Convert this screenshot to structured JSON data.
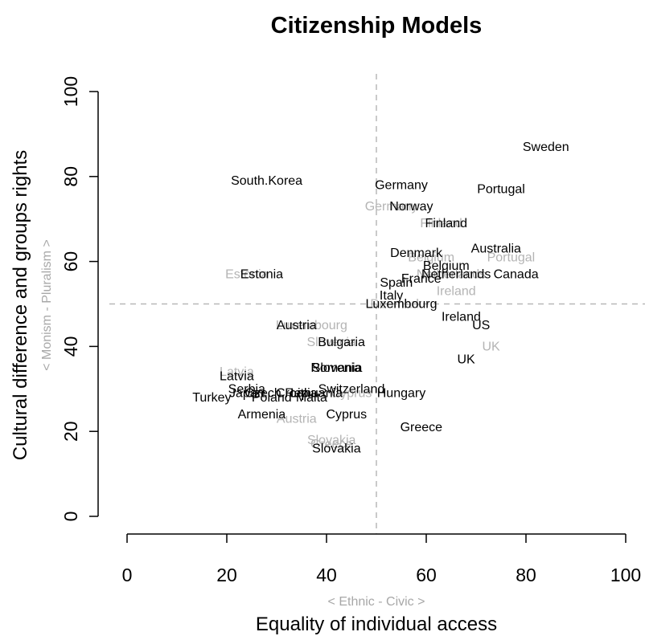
{
  "chart_data": {
    "type": "scatter",
    "title": "Citizenship Models",
    "xlabel": "Equality of individual access",
    "xlabel_sub": "< Ethnic - Civic >",
    "ylabel": "Cultural difference and groups rights",
    "ylabel_sub": "< Monism - Pluralism >",
    "xlim": [
      0,
      100
    ],
    "ylim": [
      0,
      100
    ],
    "xticks": [
      "0",
      "20",
      "40",
      "60",
      "80",
      "100"
    ],
    "yticks": [
      "0",
      "20",
      "40",
      "60",
      "80",
      "100"
    ],
    "reference_lines": {
      "x": 50,
      "y": 50
    },
    "colors": {
      "primary": "#000000",
      "secondary": "#b4b4b4",
      "reference": "#b8b8b8"
    },
    "series": [
      {
        "color": "#000000",
        "points": [
          {
            "label": "Sweden",
            "x": 84,
            "y": 87
          },
          {
            "label": "South.Korea",
            "x": 28,
            "y": 79
          },
          {
            "label": "Germany",
            "x": 55,
            "y": 78
          },
          {
            "label": "Portugal",
            "x": 75,
            "y": 77
          },
          {
            "label": "Norway",
            "x": 57,
            "y": 73
          },
          {
            "label": "Finland",
            "x": 64,
            "y": 69
          },
          {
            "label": "Australia",
            "x": 74,
            "y": 63
          },
          {
            "label": "Denmark",
            "x": 58,
            "y": 62
          },
          {
            "label": "Belgium",
            "x": 64,
            "y": 59
          },
          {
            "label": "Netherlands",
            "x": 66,
            "y": 57
          },
          {
            "label": "Canada",
            "x": 78,
            "y": 57
          },
          {
            "label": "Estonia",
            "x": 27,
            "y": 57
          },
          {
            "label": "France",
            "x": 59,
            "y": 56
          },
          {
            "label": "Spain",
            "x": 54,
            "y": 55
          },
          {
            "label": "Italy",
            "x": 53,
            "y": 52
          },
          {
            "label": "Luxembourg",
            "x": 55,
            "y": 50
          },
          {
            "label": "Ireland",
            "x": 67,
            "y": 47
          },
          {
            "label": "US",
            "x": 71,
            "y": 45
          },
          {
            "label": "Austria",
            "x": 34,
            "y": 45
          },
          {
            "label": "Bulgaria",
            "x": 43,
            "y": 41
          },
          {
            "label": "UK",
            "x": 68,
            "y": 37
          },
          {
            "label": "Romania",
            "x": 42,
            "y": 35
          },
          {
            "label": "Slovenia",
            "x": 42,
            "y": 35
          },
          {
            "label": "Latvia",
            "x": 22,
            "y": 33
          },
          {
            "label": "Serbia",
            "x": 24,
            "y": 30
          },
          {
            "label": "Switzerland",
            "x": 45,
            "y": 30
          },
          {
            "label": "Japan",
            "x": 24,
            "y": 29
          },
          {
            "label": "Czech.Rep",
            "x": 30,
            "y": 29
          },
          {
            "label": "Croatia",
            "x": 34,
            "y": 29
          },
          {
            "label": "Lithuania",
            "x": 38,
            "y": 29
          },
          {
            "label": "Hungary",
            "x": 55,
            "y": 29
          },
          {
            "label": "Turkey",
            "x": 17,
            "y": 28
          },
          {
            "label": "Poland",
            "x": 29,
            "y": 28
          },
          {
            "label": "Malta",
            "x": 37,
            "y": 28
          },
          {
            "label": "Armenia",
            "x": 27,
            "y": 24
          },
          {
            "label": "Cyprus",
            "x": 44,
            "y": 24
          },
          {
            "label": "Greece",
            "x": 59,
            "y": 21
          },
          {
            "label": "Slovakia",
            "x": 42,
            "y": 16
          }
        ]
      },
      {
        "color": "#b4b4b4",
        "points": [
          {
            "label": "Germany",
            "x": 53,
            "y": 73
          },
          {
            "label": "Finland",
            "x": 63,
            "y": 69
          },
          {
            "label": "Belgium",
            "x": 61,
            "y": 61
          },
          {
            "label": "Portugal",
            "x": 77,
            "y": 61
          },
          {
            "label": "Estonia",
            "x": 24,
            "y": 57
          },
          {
            "label": "Netherlands",
            "x": 65,
            "y": 57
          },
          {
            "label": "Ireland",
            "x": 66,
            "y": 53
          },
          {
            "label": "Denmark",
            "x": 54,
            "y": 50
          },
          {
            "label": "Luxembourg",
            "x": 37,
            "y": 45
          },
          {
            "label": "Slovenia",
            "x": 41,
            "y": 41
          },
          {
            "label": "UK",
            "x": 73,
            "y": 40
          },
          {
            "label": "Latvia",
            "x": 22,
            "y": 34
          },
          {
            "label": "Cyprus",
            "x": 45,
            "y": 29
          },
          {
            "label": "Austria",
            "x": 34,
            "y": 23
          },
          {
            "label": "Slovakia",
            "x": 41,
            "y": 18
          },
          {
            "label": "Greece",
            "x": 41,
            "y": 17
          }
        ]
      }
    ]
  }
}
